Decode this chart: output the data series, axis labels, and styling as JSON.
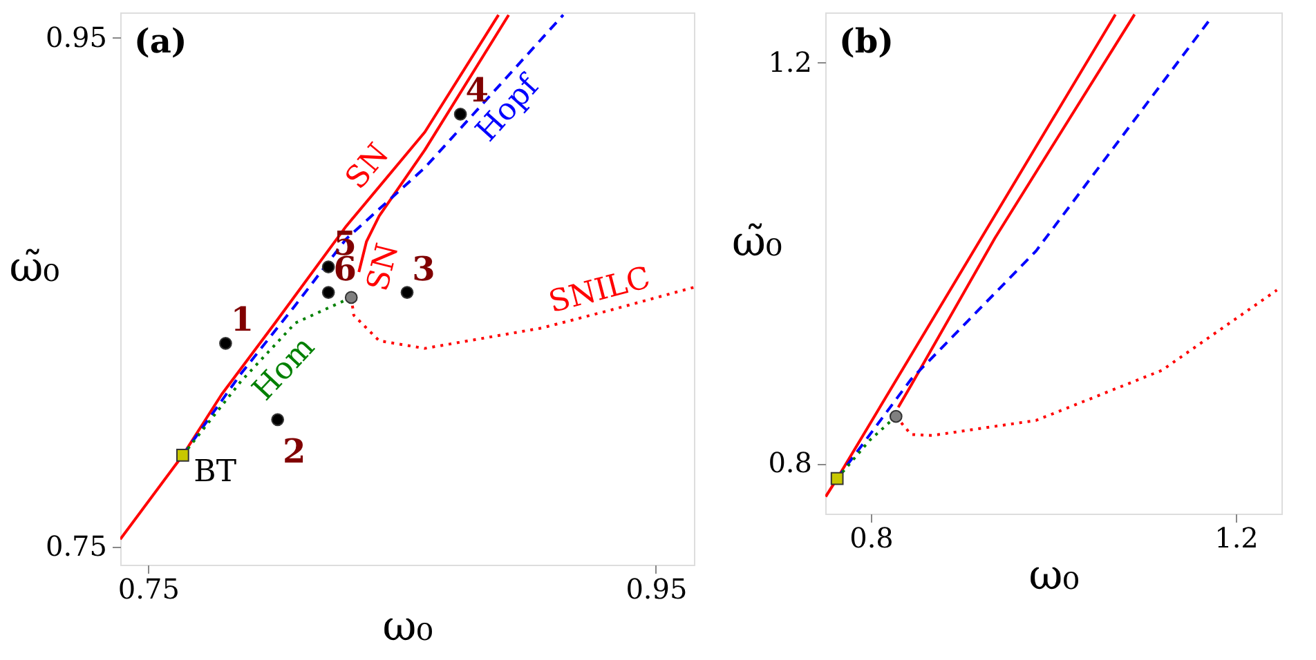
{
  "chart_data": [
    {
      "type": "line",
      "xlabel": "ω₀",
      "ylabel": "ω̃₀",
      "xlim": [
        0.739,
        0.965
      ],
      "ylim": [
        0.743,
        0.96
      ],
      "xticks": [
        0.75,
        0.95
      ],
      "yticks": [
        0.75,
        0.95
      ],
      "grid": false,
      "series": [
        {
          "color": "#ff0000",
          "line_style": "solid",
          "marker": "none",
          "x": [
            0.739,
            0.7636,
            0.779,
            0.8,
            0.828,
            0.859,
            0.888
          ],
          "values": [
            0.753,
            0.786,
            0.81,
            0.838,
            0.876,
            0.913,
            0.959
          ]
        },
        {
          "color": "#ff0000",
          "line_style": "solid",
          "marker": "none",
          "x": [
            0.833,
            0.836,
            0.841,
            0.859,
            0.892
          ],
          "values": [
            0.858,
            0.87,
            0.88,
            0.906,
            0.959
          ]
        },
        {
          "color": "#0000ff",
          "line_style": "dashed",
          "marker": "none",
          "x": [
            0.7636,
            0.7865,
            0.808,
            0.828,
            0.859,
            0.9135
          ],
          "values": [
            0.786,
            0.818,
            0.845,
            0.871,
            0.899,
            0.959
          ]
        },
        {
          "color": "#008000",
          "line_style": "dotted",
          "marker": "none",
          "x": [
            0.7636,
            0.7865,
            0.808,
            0.83
          ],
          "values": [
            0.786,
            0.815,
            0.838,
            0.848
          ]
        },
        {
          "color": "#ff0000",
          "line_style": "dotted",
          "marker": "none",
          "x": [
            0.83,
            0.831,
            0.841,
            0.859,
            0.905,
            0.932,
            0.965
          ],
          "values": [
            0.848,
            0.841,
            0.831,
            0.828,
            0.836,
            0.843,
            0.852
          ]
        },
        {
          "type": "scatter",
          "color": "#000000",
          "marker": "circle",
          "x": [
            0.7805,
            0.801,
            0.852,
            0.873,
            0.821,
            0.821
          ],
          "values": [
            0.83,
            0.8,
            0.85,
            0.92,
            0.86,
            0.85
          ]
        },
        {
          "type": "scatter",
          "color": "#808080",
          "marker": "circle",
          "x": [
            0.83
          ],
          "values": [
            0.848
          ]
        },
        {
          "type": "scatter",
          "name": "BT",
          "color": "#c8c800",
          "marker": "square",
          "x": [
            0.7636
          ],
          "values": [
            0.786
          ]
        }
      ],
      "annotations": [
        "(a)",
        {
          "text": "1",
          "x": 0.7805,
          "y": 0.83
        },
        {
          "text": "2",
          "x": 0.801,
          "y": 0.8
        },
        {
          "text": "3",
          "x": 0.852,
          "y": 0.85
        },
        {
          "text": "4",
          "x": 0.873,
          "y": 0.92
        },
        {
          "text": "5",
          "x": 0.821,
          "y": 0.86
        },
        {
          "text": "6",
          "x": 0.821,
          "y": 0.85
        },
        {
          "text": "SN",
          "x": 0.843,
          "y": 0.894
        },
        {
          "text": "SN",
          "x": 0.834,
          "y": 0.862
        },
        {
          "text": "Hopf",
          "x": 0.885,
          "y": 0.928
        },
        {
          "text": "Hom",
          "x": 0.797,
          "y": 0.826
        },
        {
          "text": "SNILC",
          "x": 0.93,
          "y": 0.8425
        }
      ]
    },
    {
      "type": "line",
      "xlabel": "ω₀",
      "ylabel": "ω̃₀",
      "xlim": [
        0.75,
        1.25
      ],
      "ylim": [
        0.75,
        1.25
      ],
      "xticks": [
        0.8,
        1.2
      ],
      "yticks": [
        0.8,
        1.2
      ],
      "grid": false,
      "series": [
        {
          "color": "#ff0000",
          "line_style": "solid",
          "marker": "none",
          "x": [
            0.7505,
            0.763,
            1.068
          ],
          "values": [
            0.767,
            0.785,
            1.248
          ]
        },
        {
          "color": "#ff0000",
          "line_style": "solid",
          "marker": "none",
          "x": [
            0.83,
            0.844,
            0.936,
            1.089
          ],
          "values": [
            0.856,
            0.878,
            1.025,
            1.248
          ]
        },
        {
          "color": "#0000ff",
          "line_style": "dashed",
          "marker": "none",
          "x": [
            0.763,
            0.844,
            0.981,
            1.17
          ],
          "values": [
            0.785,
            0.884,
            1.012,
            1.241
          ]
        },
        {
          "color": "#008000",
          "line_style": "dotted",
          "marker": "none",
          "x": [
            0.763,
            0.7985,
            0.8275
          ],
          "values": [
            0.785,
            0.823,
            0.847
          ]
        },
        {
          "color": "#ff0000",
          "line_style": "dotted",
          "marker": "none",
          "x": [
            0.8275,
            0.844,
            0.867,
            0.981,
            1.119,
            1.245
          ],
          "values": [
            0.847,
            0.829,
            0.828,
            0.843,
            0.893,
            0.973
          ]
        },
        {
          "type": "scatter",
          "color": "#808080",
          "marker": "circle",
          "x": [
            0.8275
          ],
          "values": [
            0.847
          ]
        },
        {
          "type": "scatter",
          "color": "#c8c800",
          "marker": "square",
          "x": [
            0.763
          ],
          "values": [
            0.785
          ]
        }
      ],
      "annotations": [
        "(b)"
      ]
    }
  ]
}
